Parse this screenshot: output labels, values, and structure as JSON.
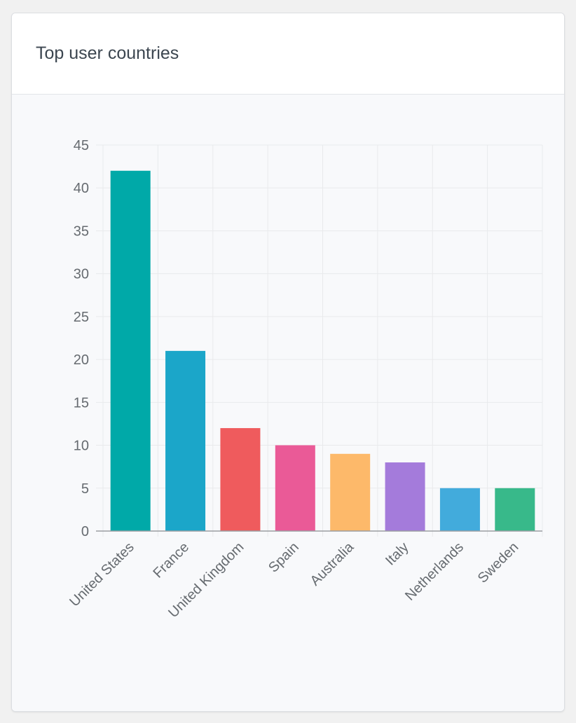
{
  "card": {
    "title": "Top user countries"
  },
  "chart_data": {
    "type": "bar",
    "title": "",
    "xlabel": "",
    "ylabel": "",
    "categories": [
      "United States",
      "France",
      "United Kingdom",
      "Spain",
      "Australia",
      "Italy",
      "Netherlands",
      "Sweden"
    ],
    "values": [
      42,
      21,
      12,
      10,
      9,
      8,
      5,
      5
    ],
    "colors": [
      "#00a9a8",
      "#1ba6c9",
      "#ef5b5d",
      "#ea5a97",
      "#fdb96a",
      "#a47bdb",
      "#42abdc",
      "#38b98a"
    ],
    "ylim": [
      0,
      45
    ],
    "yticks": [
      "0",
      "5",
      "10",
      "15",
      "20",
      "25",
      "30",
      "35",
      "40",
      "45"
    ],
    "grid": true,
    "legend": "none"
  }
}
